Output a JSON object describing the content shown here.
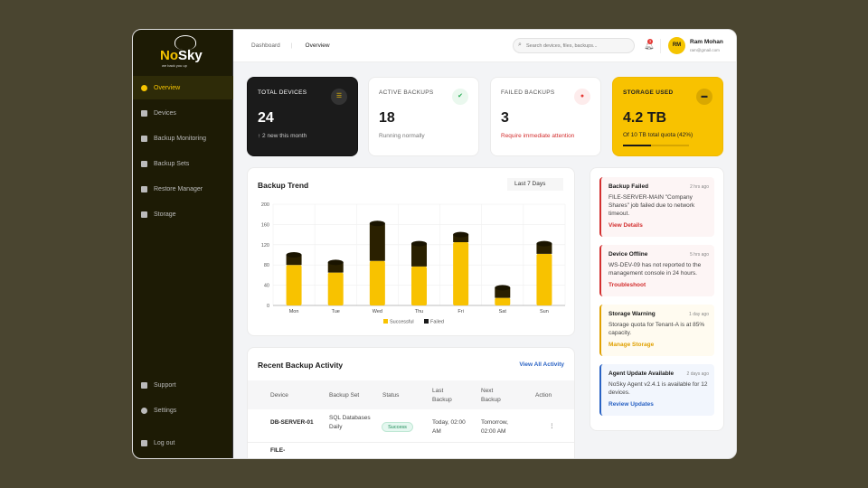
{
  "brand": {
    "name_a": "No",
    "name_b": "Sky",
    "tagline": "we back you up"
  },
  "sidebar": {
    "items": [
      {
        "label": "Overview",
        "icon": "pie-chart-icon",
        "active": true
      },
      {
        "label": "Devices",
        "icon": "server-icon"
      },
      {
        "label": "Backup Monitoring",
        "icon": "shield-icon"
      },
      {
        "label": "Backup Sets",
        "icon": "database-icon"
      },
      {
        "label": "Restore Manager",
        "icon": "history-icon"
      },
      {
        "label": "Storage",
        "icon": "hdd-icon"
      }
    ],
    "bottom": [
      {
        "label": "Support",
        "icon": "users-icon"
      },
      {
        "label": "Settings",
        "icon": "gear-icon"
      },
      {
        "label": "Log out",
        "icon": "logout-icon"
      }
    ]
  },
  "header": {
    "breadcrumb": [
      "Dashboard",
      "Overview"
    ],
    "search_placeholder": "Search devices, files, backups...",
    "notifications": "3",
    "user": {
      "initials": "RM",
      "name": "Ram Mohan",
      "email": "ram@gmail.com"
    }
  },
  "stats": [
    {
      "label": "TOTAL DEVICES",
      "value": "24",
      "sub": "↑ 2 new this month"
    },
    {
      "label": "ACTIVE BACKUPS",
      "value": "18",
      "sub": "Running normally"
    },
    {
      "label": "FAILED BACKUPS",
      "value": "3",
      "sub": "Require immediate attention"
    },
    {
      "label": "STORAGE USED",
      "value": "4.2 TB",
      "sub": "Of 10 TB total quota (42%)",
      "progress": 42
    }
  ],
  "colors": {
    "accent": "#f8c200",
    "success": "#f8c200",
    "failed": "#2a2000",
    "danger": "#d32f2f",
    "warning": "#e0a000",
    "info": "#2962c4"
  },
  "chart_data": {
    "type": "bar",
    "stacked": true,
    "title": "Backup Trend",
    "range": "Last 7 Days",
    "categories": [
      "Mon",
      "Tue",
      "Wed",
      "Thu",
      "Fri",
      "Sat",
      "Sun"
    ],
    "series": [
      {
        "name": "Successful",
        "values": [
          80,
          65,
          88,
          77,
          125,
          15,
          102
        ]
      },
      {
        "name": "Failed",
        "values": [
          20,
          20,
          74,
          45,
          15,
          20,
          20
        ]
      }
    ],
    "ylim": [
      0,
      200
    ],
    "yticks": [
      0,
      40,
      80,
      120,
      160,
      200
    ],
    "grid": true,
    "legend": "bottom"
  },
  "alerts": [
    {
      "title": "Backup Failed",
      "time": "2 hrs ago",
      "body": "FILE-SERVER-MAIN \"Company Shares\" job failed due to network timeout.",
      "link": "View Details"
    },
    {
      "title": "Device Offline",
      "time": "5 hrs ago",
      "body": "WS-DEV-09 has not reported to the management console in 24 hours.",
      "link": "Troubleshoot"
    },
    {
      "title": "Storage Warning",
      "time": "1 day ago",
      "body": "Storage quota for Tenant-A is at 85% capacity.",
      "link": "Manage Storage"
    },
    {
      "title": "Agent Update Available",
      "time": "2 days ago",
      "body": "NoSky Agent v2.4.1 is available for 12 devices.",
      "link": "Review Updates"
    }
  ],
  "activity": {
    "title": "Recent Backup Activity",
    "view_all": "View All Activity",
    "columns": [
      "Device",
      "Backup Set",
      "Status",
      "Last Backup",
      "Next Backup",
      "Action"
    ],
    "rows": [
      {
        "device": "DB-SERVER-01",
        "set": "SQL Databases Daily",
        "status": "Success",
        "last": "Today, 02:00 AM",
        "next": "Tomorrow, 02:00 AM",
        "action": "⋮"
      },
      {
        "device": "FILE-"
      }
    ]
  }
}
